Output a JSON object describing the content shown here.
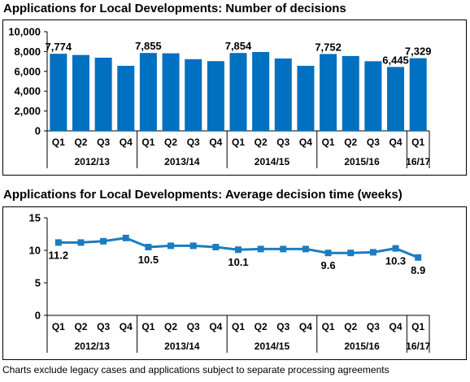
{
  "charts": {
    "bar_title": "Applications for Local Developments: Number of decisions",
    "line_title": "Applications for Local Developments: Average decision time (weeks)",
    "footer": "Charts exclude legacy cases and applications subject to separate processing agreements"
  },
  "chart_data": [
    {
      "type": "bar",
      "title": "Applications for Local Developments: Number of decisions",
      "categories": [
        "Q1",
        "Q2",
        "Q3",
        "Q4",
        "Q1",
        "Q2",
        "Q3",
        "Q4",
        "Q1",
        "Q2",
        "Q3",
        "Q4",
        "Q1",
        "Q2",
        "Q3",
        "Q4",
        "Q1"
      ],
      "groups": [
        {
          "label": "2012/13",
          "count": 4
        },
        {
          "label": "2013/14",
          "count": 4
        },
        {
          "label": "2014/15",
          "count": 4
        },
        {
          "label": "2015/16",
          "count": 4
        },
        {
          "label": "16/17",
          "count": 1
        }
      ],
      "values": [
        7774,
        7650,
        7380,
        6560,
        7855,
        7820,
        7230,
        7030,
        7854,
        7950,
        7300,
        6560,
        7752,
        7550,
        7020,
        6445,
        7329
      ],
      "data_labels": {
        "0": "7,774",
        "4": "7,855",
        "8": "7,854",
        "12": "7,752",
        "15": "6,445",
        "16": "7,329"
      },
      "ylim": [
        0,
        10000
      ],
      "yticks": [
        0,
        2000,
        4000,
        6000,
        8000,
        10000
      ],
      "ytick_labels": [
        "0",
        "2,000",
        "4,000",
        "6,000",
        "8,000",
        "10,000"
      ],
      "color": "#0070c0",
      "grid": false
    },
    {
      "type": "line",
      "title": "Applications for Local Developments: Average decision time (weeks)",
      "categories": [
        "Q1",
        "Q2",
        "Q3",
        "Q4",
        "Q1",
        "Q2",
        "Q3",
        "Q4",
        "Q1",
        "Q2",
        "Q3",
        "Q4",
        "Q1",
        "Q2",
        "Q3",
        "Q4",
        "Q1"
      ],
      "groups": [
        {
          "label": "2012/13",
          "count": 4
        },
        {
          "label": "2013/14",
          "count": 4
        },
        {
          "label": "2014/15",
          "count": 4
        },
        {
          "label": "2015/16",
          "count": 4
        },
        {
          "label": "16/17",
          "count": 1
        }
      ],
      "values": [
        11.2,
        11.2,
        11.4,
        11.9,
        10.5,
        10.7,
        10.7,
        10.5,
        10.1,
        10.2,
        10.2,
        10.2,
        9.6,
        9.6,
        9.7,
        10.3,
        8.9
      ],
      "data_labels": {
        "0": "11.2",
        "4": "10.5",
        "8": "10.1",
        "12": "9.6",
        "15": "10.3",
        "16": "8.9"
      },
      "ylim": [
        0,
        15
      ],
      "yticks": [
        0,
        5,
        10,
        15
      ],
      "ytick_labels": [
        "0",
        "5",
        "10",
        "15"
      ],
      "color": "#1a7dc0",
      "grid": false
    }
  ]
}
